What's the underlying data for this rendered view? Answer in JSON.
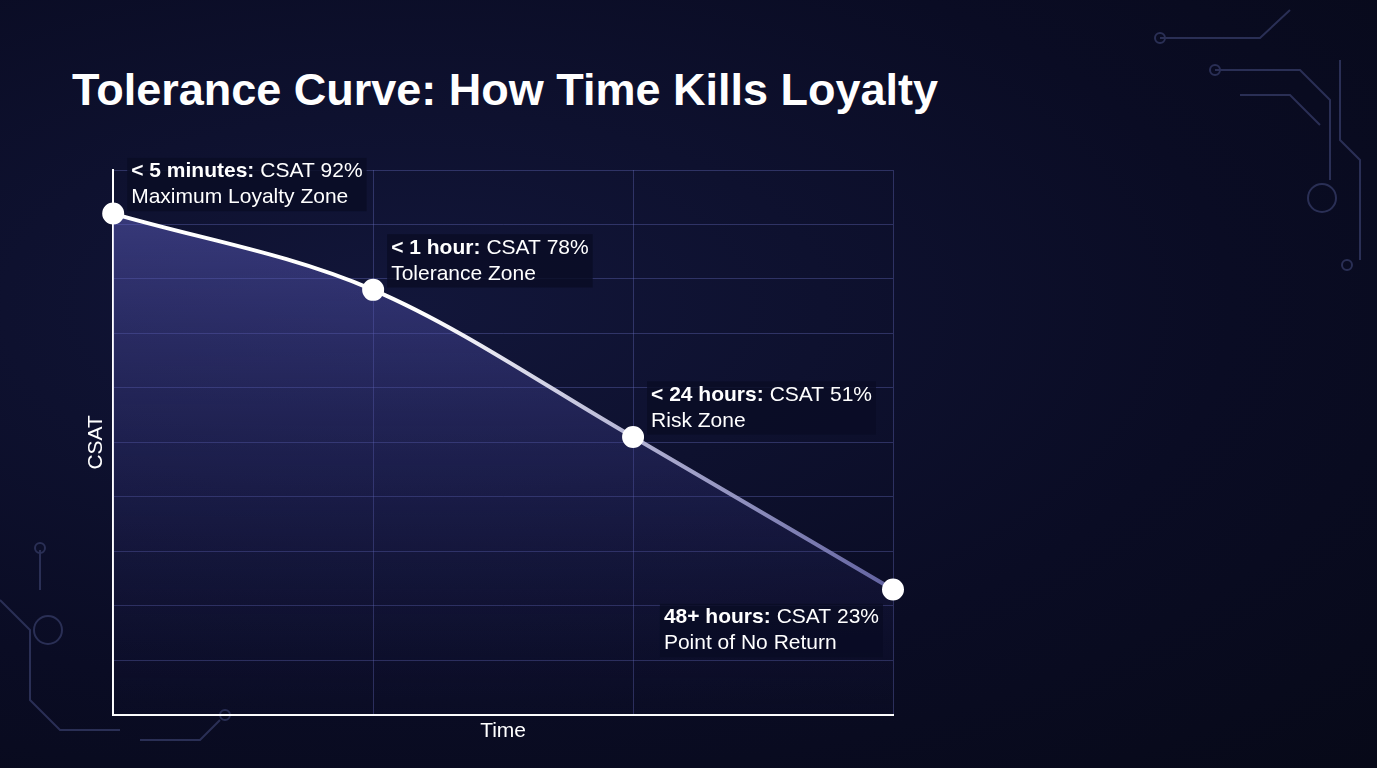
{
  "chart_data": {
    "type": "line",
    "title": "Tolerance Curve: How Time Kills Loyalty",
    "x_label": "Time",
    "y_label": "CSAT",
    "categories": [
      "< 5 minutes:",
      "< 1 hour:",
      "< 24 hours:",
      "48+ hours:"
    ],
    "values": [
      92,
      78,
      51,
      23
    ],
    "value_labels": [
      "CSAT 92%",
      "CSAT 78%",
      "CSAT 51%",
      "CSAT 23%"
    ],
    "annotations": [
      "Maximum Loyalty Zone",
      "Tolerance Zone",
      "Risk Zone",
      "Point of No Return"
    ],
    "color": "#ffffff",
    "ylim": [
      0,
      100
    ],
    "yticks": [
      0,
      10,
      20,
      30,
      40,
      50,
      60,
      70,
      80,
      90,
      100
    ],
    "grid": true,
    "data_labels": true,
    "tick_labels": false,
    "marker": "circle"
  }
}
